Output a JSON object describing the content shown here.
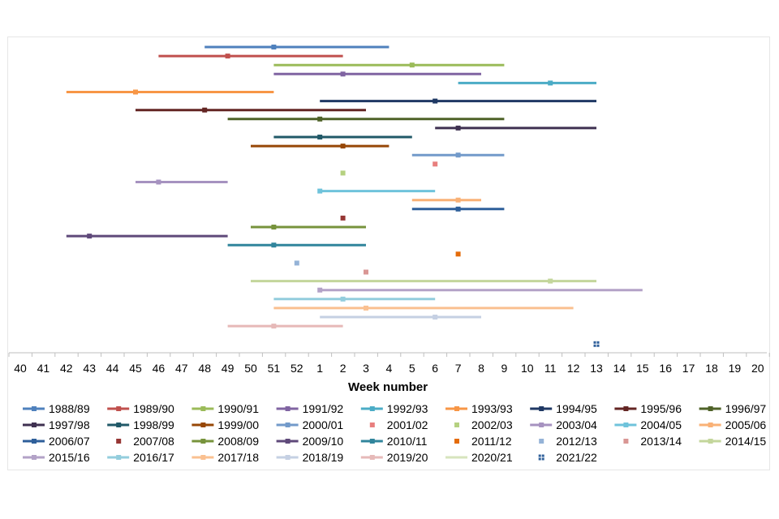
{
  "chart_data": {
    "type": "range",
    "xlabel": "Week number",
    "x_ticks": [
      "40",
      "41",
      "42",
      "43",
      "44",
      "45",
      "46",
      "47",
      "48",
      "49",
      "50",
      "51",
      "52",
      "1",
      "2",
      "3",
      "4",
      "5",
      "6",
      "7",
      "8",
      "9",
      "10",
      "11",
      "12",
      "13",
      "14",
      "15",
      "16",
      "17",
      "18",
      "19",
      "20"
    ],
    "grid": false,
    "legend_position": "bottom",
    "series": [
      {
        "name": "1988/89",
        "color": "#4f81bd",
        "style": "line",
        "start": "48",
        "peak": "51",
        "end": "4"
      },
      {
        "name": "1989/90",
        "color": "#c0504d",
        "style": "line",
        "start": "46",
        "peak": "49",
        "end": "2"
      },
      {
        "name": "1990/91",
        "color": "#9bbb59",
        "style": "line",
        "start": "51",
        "peak": "5",
        "end": "9"
      },
      {
        "name": "1991/92",
        "color": "#8064a2",
        "style": "line",
        "start": "51",
        "peak": "2",
        "end": "8"
      },
      {
        "name": "1992/93",
        "color": "#4bacc6",
        "style": "line",
        "start": "7",
        "peak": "11",
        "end": "13"
      },
      {
        "name": "1993/93",
        "color": "#f79646",
        "style": "line",
        "start": "42",
        "peak": "45",
        "end": "51"
      },
      {
        "name": "1994/95",
        "color": "#1f3864",
        "style": "line",
        "start": "1",
        "peak": "6",
        "end": "13"
      },
      {
        "name": "1995/96",
        "color": "#632523",
        "style": "line",
        "start": "45",
        "peak": "48",
        "end": "3"
      },
      {
        "name": "1996/97",
        "color": "#4f6228",
        "style": "line",
        "start": "49",
        "peak": "1",
        "end": "9"
      },
      {
        "name": "1997/98",
        "color": "#3f3151",
        "style": "line",
        "start": "6",
        "peak": "7",
        "end": "13"
      },
      {
        "name": "1998/99",
        "color": "#215968",
        "style": "line",
        "start": "51",
        "peak": "1",
        "end": "5"
      },
      {
        "name": "1999/00",
        "color": "#974706",
        "style": "line",
        "start": "50",
        "peak": "2",
        "end": "4"
      },
      {
        "name": "2000/01",
        "color": "#729aca",
        "style": "line",
        "start": "5",
        "peak": "7",
        "end": "9"
      },
      {
        "name": "2001/02",
        "color": "#e87f7e",
        "style": "point",
        "peak": "6"
      },
      {
        "name": "2002/03",
        "color": "#b5d180",
        "style": "point",
        "peak": "2"
      },
      {
        "name": "2003/04",
        "color": "#a692c0",
        "style": "line",
        "start": "45",
        "peak": "46",
        "end": "49"
      },
      {
        "name": "2004/05",
        "color": "#6fc3db",
        "style": "line",
        "start": "1",
        "peak": "1",
        "end": "6"
      },
      {
        "name": "2005/06",
        "color": "#f9b176",
        "style": "line",
        "start": "5",
        "peak": "7",
        "end": "8"
      },
      {
        "name": "2006/07",
        "color": "#2e5f9a",
        "style": "line",
        "start": "5",
        "peak": "7",
        "end": "9"
      },
      {
        "name": "2007/08",
        "color": "#963634",
        "style": "point",
        "peak": "2"
      },
      {
        "name": "2008/09",
        "color": "#77933c",
        "style": "line",
        "start": "50",
        "peak": "51",
        "end": "3"
      },
      {
        "name": "2009/10",
        "color": "#5f497a",
        "style": "line",
        "start": "42",
        "peak": "43",
        "end": "49"
      },
      {
        "name": "2010/11",
        "color": "#31859c",
        "style": "line",
        "start": "49",
        "peak": "51",
        "end": "3"
      },
      {
        "name": "2011/12",
        "color": "#e46c0a",
        "style": "point",
        "peak": "7"
      },
      {
        "name": "2012/13",
        "color": "#95b3d7",
        "style": "point",
        "peak": "52"
      },
      {
        "name": "2013/14",
        "color": "#d99694",
        "style": "point",
        "peak": "3"
      },
      {
        "name": "2014/15",
        "color": "#c3d69b",
        "style": "line",
        "start": "50",
        "peak": "11",
        "end": "13"
      },
      {
        "name": "2015/16",
        "color": "#b3a2c7",
        "style": "line",
        "start": "1",
        "peak": "1",
        "end": "15"
      },
      {
        "name": "2016/17",
        "color": "#93cddd",
        "style": "line",
        "start": "51",
        "peak": "2",
        "end": "6"
      },
      {
        "name": "2017/18",
        "color": "#fac090",
        "style": "line",
        "start": "51",
        "peak": "3",
        "end": "12"
      },
      {
        "name": "2018/19",
        "color": "#c5d0e3",
        "style": "line",
        "start": "1",
        "peak": "6",
        "end": "8"
      },
      {
        "name": "2019/20",
        "color": "#e6b9b8",
        "style": "line",
        "start": "49",
        "peak": "51",
        "end": "2"
      },
      {
        "name": "2020/21",
        "color": "#d7e4bd",
        "style": "none"
      },
      {
        "name": "2021/22",
        "color": "#2e5f9a",
        "style": "point-cross",
        "peak": "13"
      }
    ]
  }
}
